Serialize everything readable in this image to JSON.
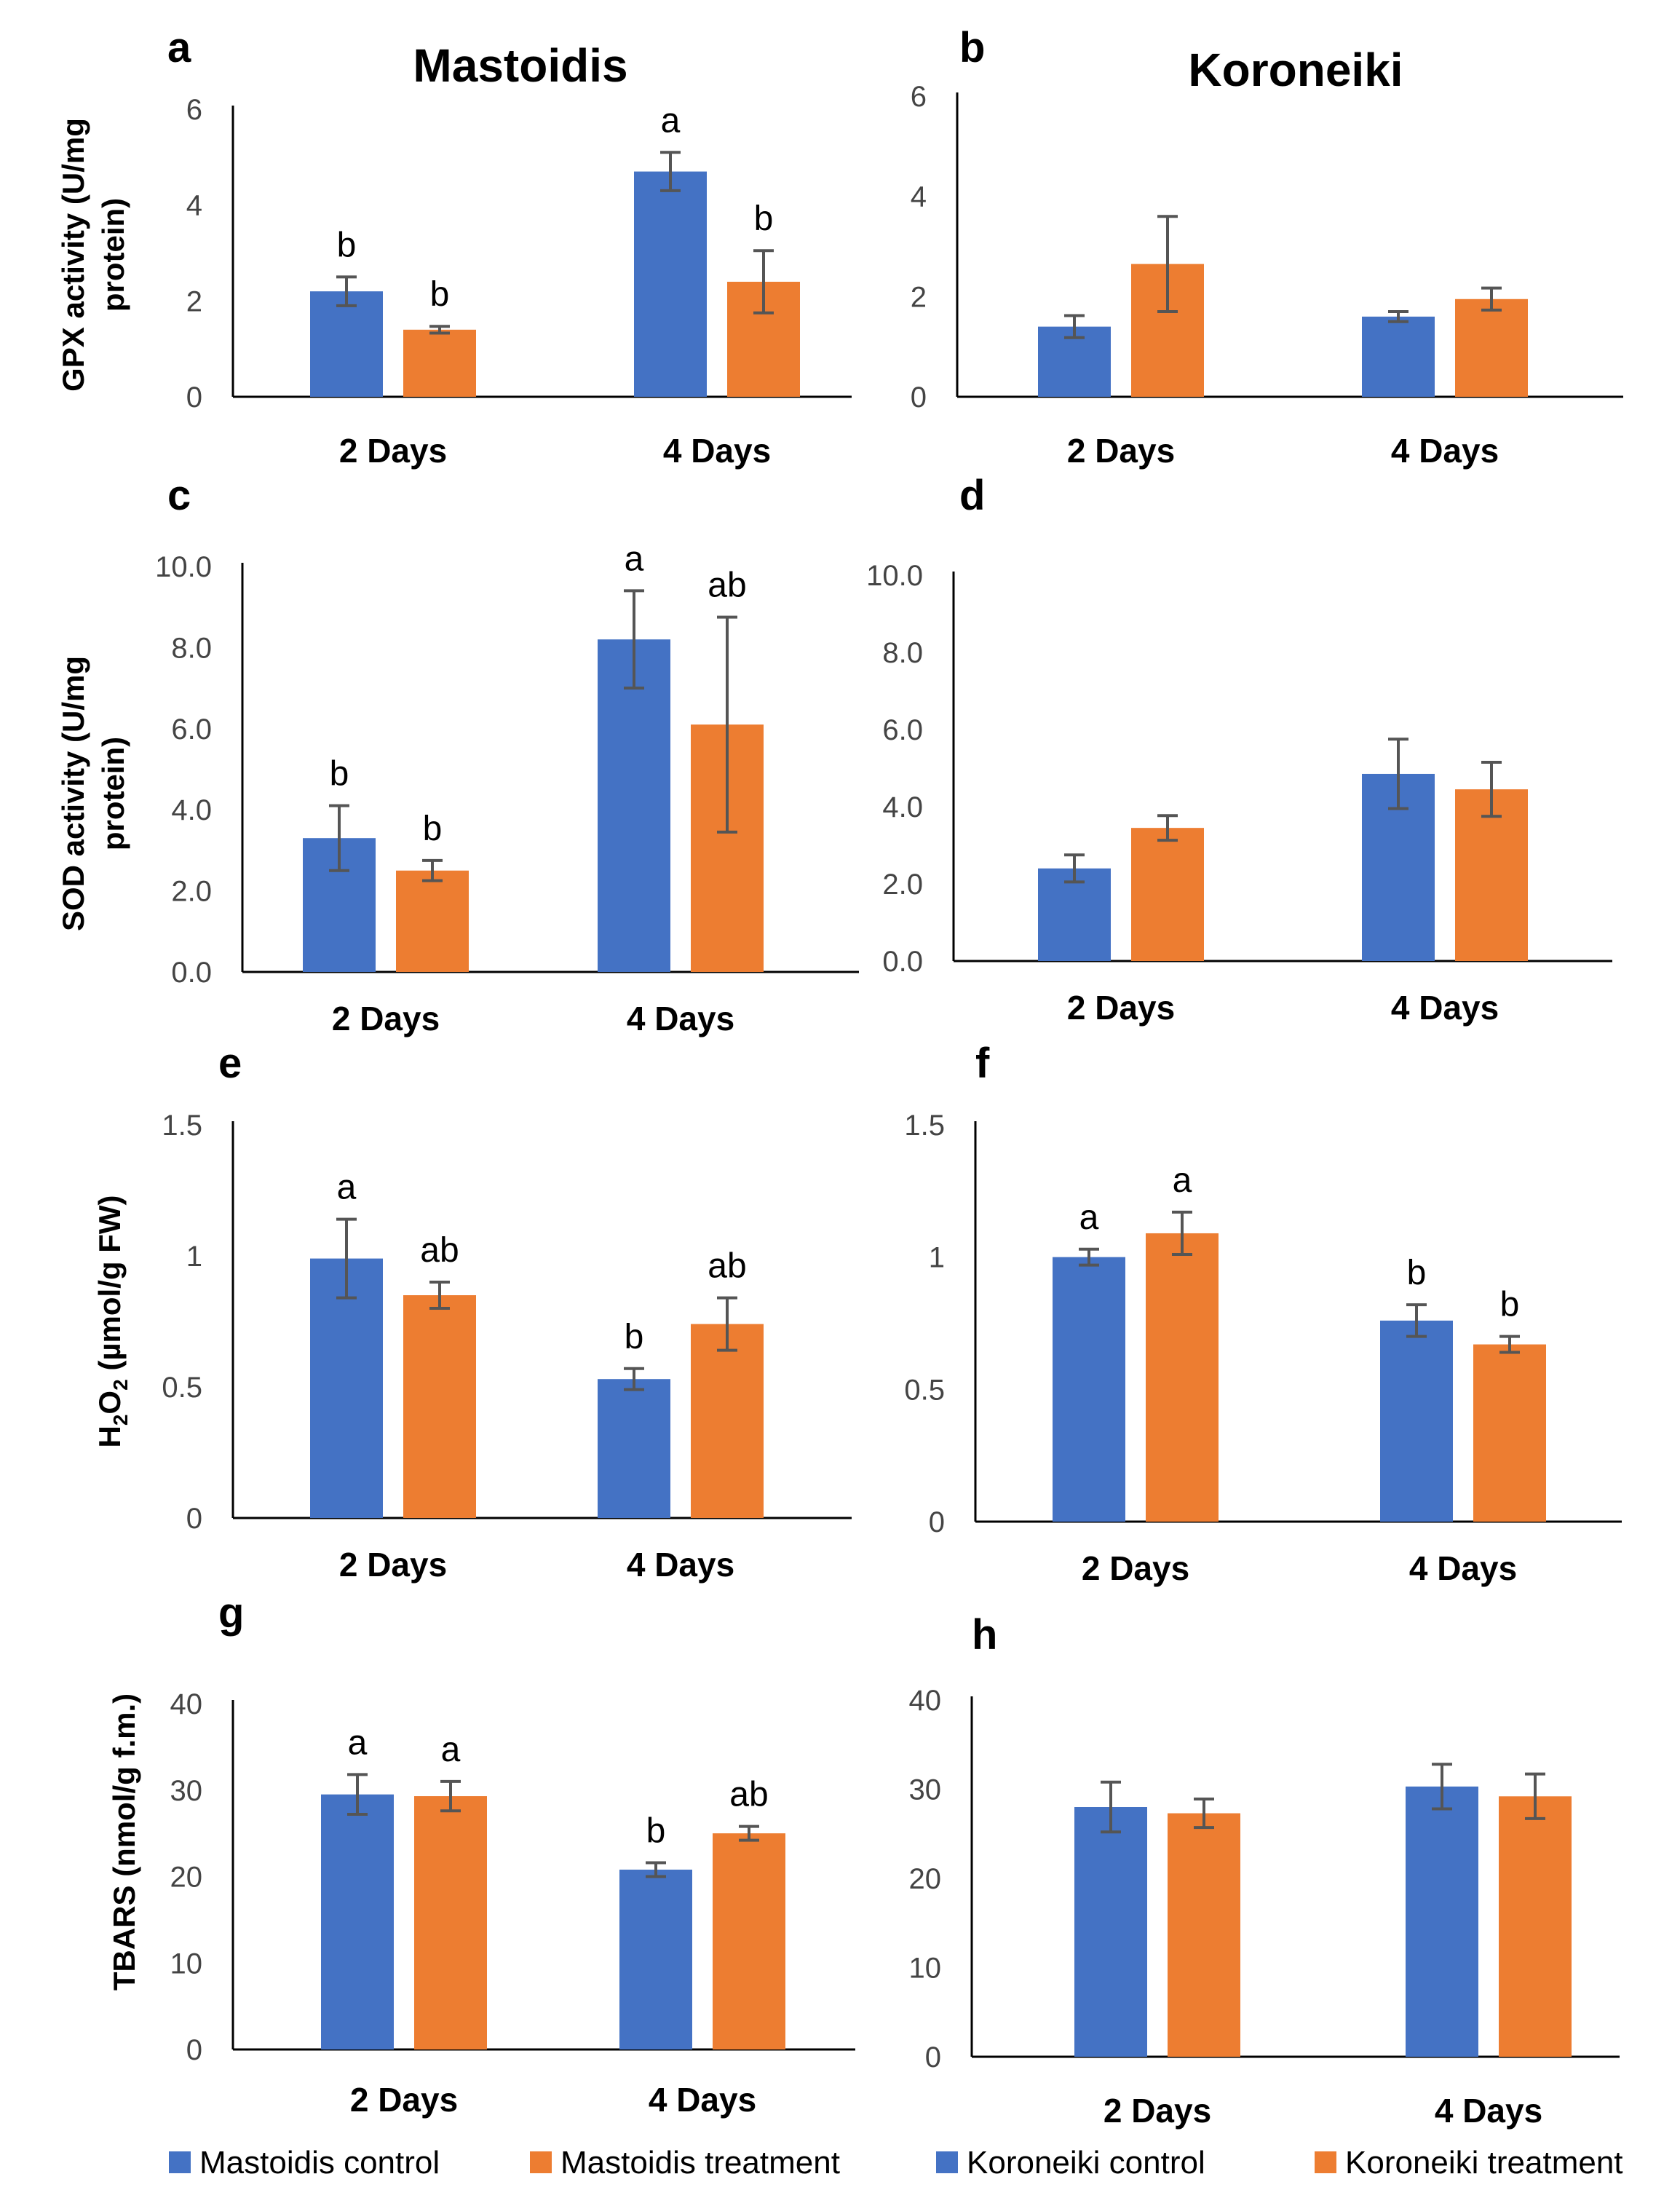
{
  "colors": {
    "control": "#4472C4",
    "treatment": "#ED7D31",
    "error_bar": "#555555",
    "axis": "#000000"
  },
  "titles": {
    "left": "Mastoidis",
    "right": "Koroneiki"
  },
  "ylabels": {
    "gpx": [
      "GPX activity (U/mg",
      "protein)"
    ],
    "sod": [
      "SOD activity (U/mg",
      "protein)"
    ],
    "h2o2": {
      "h": "H",
      "s1": "2",
      "o": "O",
      "s2": "2",
      "rest": " (µmol/g FW)"
    },
    "tbars": [
      "TBARS (nmol/g f.m.)"
    ]
  },
  "legend": [
    "Mastoidis control",
    "Mastoidis treatment",
    "Koroneiki control",
    "Koroneiki treatment"
  ],
  "chart_data": [
    {
      "panel": "a",
      "type": "bar",
      "cultivar": "Mastoidis",
      "categories": [
        "2 Days",
        "4 Days"
      ],
      "ylim": [
        0,
        6
      ],
      "yticks": [
        "0",
        "2",
        "4",
        "6"
      ],
      "ytick_values": [
        0,
        2,
        4,
        6
      ],
      "series": [
        {
          "name": "Mastoidis control",
          "values": [
            2.2,
            4.7
          ],
          "errors": [
            0.3,
            0.4
          ],
          "labels": [
            "b",
            "a"
          ]
        },
        {
          "name": "Mastoidis treatment",
          "values": [
            1.4,
            2.4
          ],
          "errors": [
            0.07,
            0.65
          ],
          "labels": [
            "b",
            "b"
          ]
        }
      ]
    },
    {
      "panel": "b",
      "type": "bar",
      "cultivar": "Koroneiki",
      "categories": [
        "2 Days",
        "4 Days"
      ],
      "ylim": [
        0,
        6
      ],
      "yticks": [
        "0",
        "2",
        "4",
        "6"
      ],
      "ytick_values": [
        0,
        2,
        4,
        6
      ],
      "series": [
        {
          "name": "Koroneiki control",
          "values": [
            1.4,
            1.6
          ],
          "errors": [
            0.22,
            0.1
          ],
          "labels": [
            "",
            ""
          ]
        },
        {
          "name": "Koroneiki treatment",
          "values": [
            2.65,
            1.95
          ],
          "errors": [
            0.95,
            0.22
          ],
          "labels": [
            "",
            ""
          ]
        }
      ]
    },
    {
      "panel": "c",
      "type": "bar",
      "cultivar": "Mastoidis",
      "categories": [
        "2 Days",
        "4 Days"
      ],
      "ylim": [
        0,
        10
      ],
      "yticks": [
        "0.0",
        "2.0",
        "4.0",
        "6.0",
        "8.0",
        "10.0"
      ],
      "ytick_values": [
        0,
        2,
        4,
        6,
        8,
        10
      ],
      "series": [
        {
          "name": "Mastoidis control",
          "values": [
            3.3,
            8.2
          ],
          "errors": [
            0.8,
            1.2
          ],
          "labels": [
            "b",
            "a"
          ]
        },
        {
          "name": "Mastoidis treatment",
          "values": [
            2.5,
            6.1
          ],
          "errors": [
            0.25,
            2.65
          ],
          "labels": [
            "b",
            "ab"
          ]
        }
      ]
    },
    {
      "panel": "d",
      "type": "bar",
      "cultivar": "Koroneiki",
      "categories": [
        "2 Days",
        "4 Days"
      ],
      "ylim": [
        0,
        10
      ],
      "yticks": [
        "0.0",
        "2.0",
        "4.0",
        "6.0",
        "8.0",
        "10.0"
      ],
      "ytick_values": [
        0,
        2,
        4,
        6,
        8,
        10
      ],
      "series": [
        {
          "name": "Koroneiki control",
          "values": [
            2.4,
            4.85
          ],
          "errors": [
            0.35,
            0.9
          ],
          "labels": [
            "",
            ""
          ]
        },
        {
          "name": "Koroneiki treatment",
          "values": [
            3.45,
            4.45
          ],
          "errors": [
            0.32,
            0.7
          ],
          "labels": [
            "",
            ""
          ]
        }
      ]
    },
    {
      "panel": "e",
      "type": "bar",
      "cultivar": "Mastoidis",
      "categories": [
        "2 Days",
        "4 Days"
      ],
      "ylim": [
        0,
        1.5
      ],
      "yticks": [
        "0",
        "0.5",
        "1",
        "1.5"
      ],
      "ytick_values": [
        0,
        0.5,
        1,
        1.5
      ],
      "series": [
        {
          "name": "Mastoidis control",
          "values": [
            0.99,
            0.53
          ],
          "errors": [
            0.15,
            0.04
          ],
          "labels": [
            "a",
            "b"
          ]
        },
        {
          "name": "Mastoidis treatment",
          "values": [
            0.85,
            0.74
          ],
          "errors": [
            0.05,
            0.1
          ],
          "labels": [
            "ab",
            "ab"
          ]
        }
      ]
    },
    {
      "panel": "f",
      "type": "bar",
      "cultivar": "Koroneiki",
      "categories": [
        "2 Days",
        "4 Days"
      ],
      "ylim": [
        0,
        1.5
      ],
      "yticks": [
        "0",
        "0.5",
        "1",
        "1.5"
      ],
      "ytick_values": [
        0,
        0.5,
        1,
        1.5
      ],
      "series": [
        {
          "name": "Koroneiki control",
          "values": [
            1.0,
            0.76
          ],
          "errors": [
            0.03,
            0.06
          ],
          "labels": [
            "a",
            "b"
          ]
        },
        {
          "name": "Koroneiki treatment",
          "values": [
            1.09,
            0.67
          ],
          "errors": [
            0.08,
            0.03
          ],
          "labels": [
            "a",
            "b"
          ]
        }
      ]
    },
    {
      "panel": "g",
      "type": "bar",
      "cultivar": "Mastoidis",
      "categories": [
        "2 Days",
        "4 Days"
      ],
      "ylim": [
        0,
        40
      ],
      "yticks": [
        "0",
        "10",
        "20",
        "30",
        "40"
      ],
      "ytick_values": [
        0,
        10,
        20,
        30,
        40
      ],
      "series": [
        {
          "name": "Mastoidis control",
          "values": [
            29.5,
            20.8
          ],
          "errors": [
            2.3,
            0.8
          ],
          "labels": [
            "a",
            "b"
          ]
        },
        {
          "name": "Mastoidis treatment",
          "values": [
            29.3,
            25.0
          ],
          "errors": [
            1.7,
            0.8
          ],
          "labels": [
            "a",
            "ab"
          ]
        }
      ]
    },
    {
      "panel": "h",
      "type": "bar",
      "cultivar": "Koroneiki",
      "categories": [
        "2 Days",
        "4 Days"
      ],
      "ylim": [
        0,
        40
      ],
      "yticks": [
        "0",
        "10",
        "20",
        "30",
        "40"
      ],
      "ytick_values": [
        0,
        10,
        20,
        30,
        40
      ],
      "series": [
        {
          "name": "Koroneiki control",
          "values": [
            28.0,
            30.3
          ],
          "errors": [
            2.8,
            2.5
          ],
          "labels": [
            "",
            ""
          ]
        },
        {
          "name": "Koroneiki treatment",
          "values": [
            27.3,
            29.2
          ],
          "errors": [
            1.6,
            2.5
          ],
          "labels": [
            "",
            ""
          ]
        }
      ]
    }
  ]
}
